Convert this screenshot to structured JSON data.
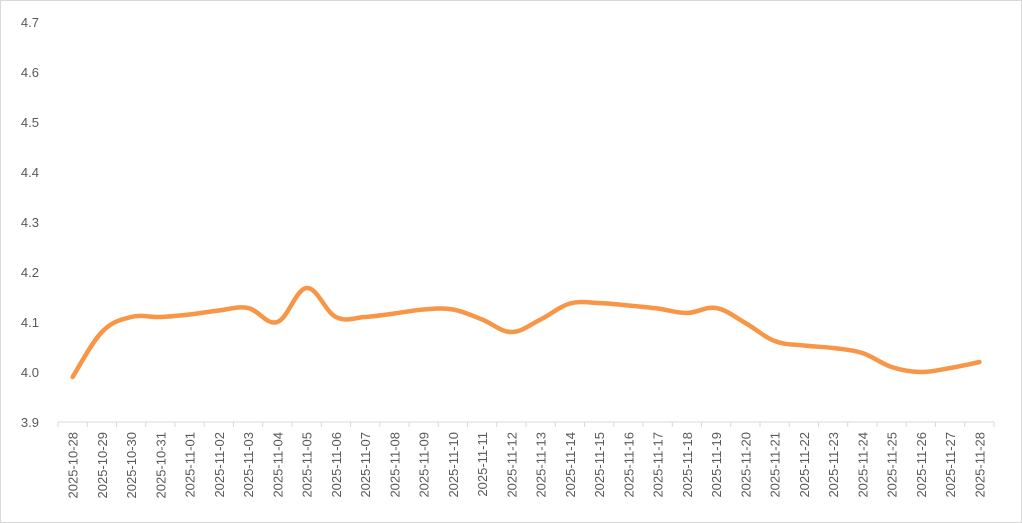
{
  "chart_data": {
    "type": "line",
    "title": "",
    "xlabel": "",
    "ylabel": "",
    "ylim": [
      3.9,
      4.7
    ],
    "y_ticks": [
      "3.9",
      "4.0",
      "4.1",
      "4.2",
      "4.3",
      "4.4",
      "4.5",
      "4.6",
      "4.7"
    ],
    "grid": false,
    "legend": "none",
    "categories": [
      "2025-10-28",
      "2025-10-29",
      "2025-10-30",
      "2025-10-31",
      "2025-11-01",
      "2025-11-02",
      "2025-11-03",
      "2025-11-04",
      "2025-11-05",
      "2025-11-06",
      "2025-11-07",
      "2025-11-08",
      "2025-11-09",
      "2025-11-10",
      "2025-11-11",
      "2025-11-12",
      "2025-11-13",
      "2025-11-14",
      "2025-11-15",
      "2025-11-16",
      "2025-11-17",
      "2025-11-18",
      "2025-11-19",
      "2025-11-20",
      "2025-11-21",
      "2025-11-22",
      "2025-11-23",
      "2025-11-24",
      "2025-11-25",
      "2025-11-26",
      "2025-11-27",
      "2025-11-28"
    ],
    "series": [
      {
        "values": [
          3.99,
          4.08,
          4.11,
          4.11,
          4.115,
          4.123,
          4.128,
          4.1,
          4.168,
          4.11,
          4.11,
          4.117,
          4.125,
          4.125,
          4.105,
          4.08,
          4.105,
          4.137,
          4.138,
          4.133,
          4.127,
          4.118,
          4.128,
          4.098,
          4.062,
          4.053,
          4.048,
          4.038,
          4.01,
          4.0,
          4.008,
          4.02
        ],
        "color": "#f79646"
      }
    ]
  }
}
